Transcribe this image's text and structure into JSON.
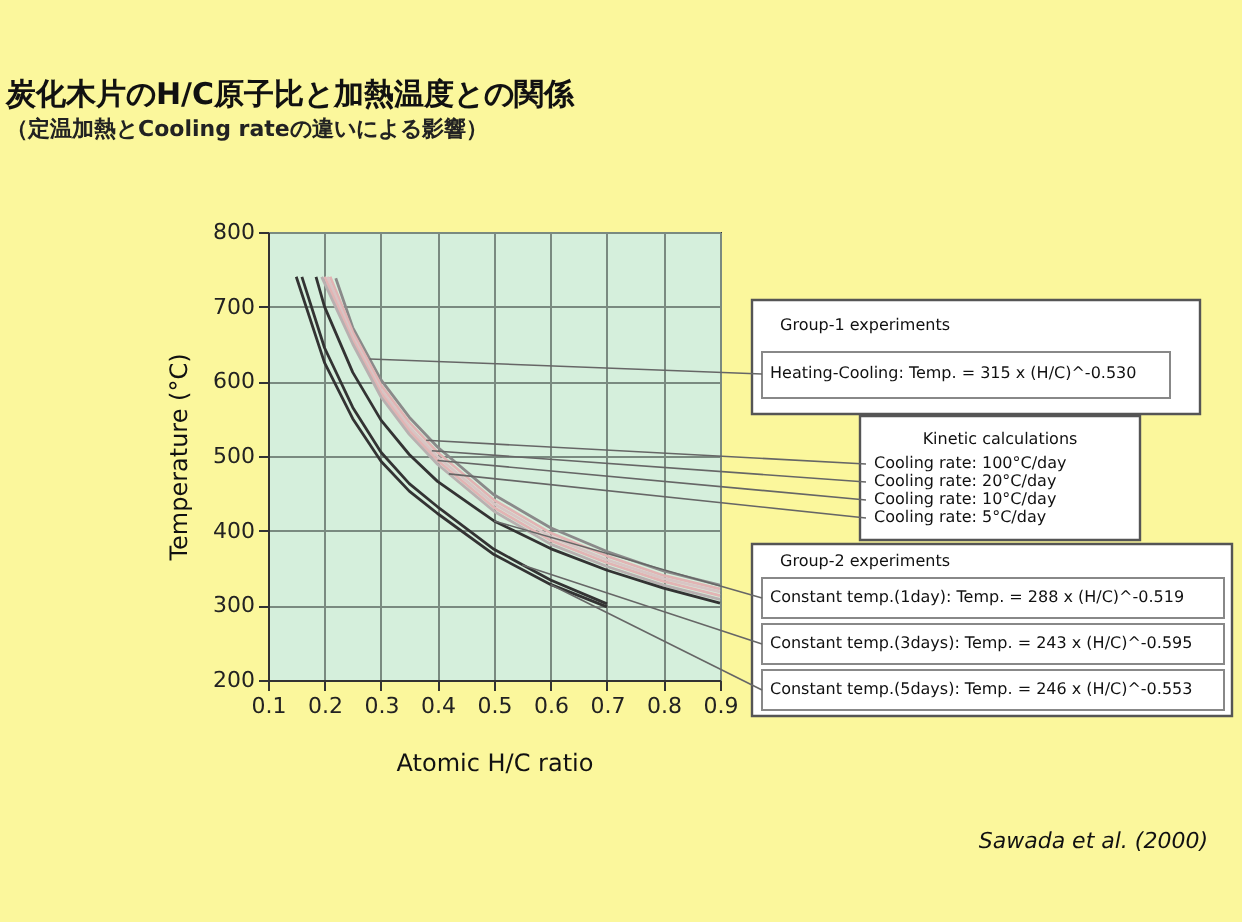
{
  "chart_data": {
    "type": "line",
    "title": "炭化木片のH/C原子比と加熱温度との関係",
    "subtitle": "（定温加熱とCooling rateの違いによる影響）",
    "xlabel": "Atomic H/C ratio",
    "ylabel": "Temperature (°C)",
    "xlim": [
      0.1,
      0.9
    ],
    "ylim": [
      200,
      800
    ],
    "xticks": [
      0.1,
      0.2,
      0.3,
      0.4,
      0.5,
      0.6,
      0.7,
      0.8,
      0.9
    ],
    "yticks": [
      200,
      300,
      400,
      500,
      600,
      700,
      800
    ],
    "grid": true,
    "marker": "none",
    "line_style": "solid",
    "series": [
      {
        "color": "#8a8a8a",
        "x": [
          0.22,
          0.25,
          0.3,
          0.35,
          0.4,
          0.5,
          0.6,
          0.7,
          0.8,
          0.9
        ],
        "values": [
          738,
          672,
          602,
          552,
          512,
          448,
          404,
          372,
          346,
          327
        ]
      },
      {
        "color": "#e2b4b4",
        "x": [
          0.21,
          0.25,
          0.3,
          0.35,
          0.4,
          0.5,
          0.6,
          0.7,
          0.8,
          0.9
        ],
        "values": [
          740,
          666,
          595,
          545,
          505,
          441,
          397,
          366,
          340,
          322
        ]
      },
      {
        "color": "#d8c4c4",
        "x": [
          0.205,
          0.25,
          0.3,
          0.35,
          0.4,
          0.5,
          0.6,
          0.7,
          0.8,
          0.9
        ],
        "values": [
          740,
          660,
          589,
          539,
          499,
          436,
          392,
          361,
          336,
          318
        ]
      },
      {
        "color": "#e2b4b4",
        "x": [
          0.2,
          0.25,
          0.3,
          0.35,
          0.4,
          0.5,
          0.6,
          0.7,
          0.8,
          0.9
        ],
        "values": [
          740,
          655,
          584,
          534,
          494,
          431,
          387,
          357,
          332,
          313
        ]
      },
      {
        "color": "#b8b0b0",
        "x": [
          0.195,
          0.25,
          0.3,
          0.35,
          0.4,
          0.5,
          0.6,
          0.7,
          0.8,
          0.9
        ],
        "values": [
          740,
          650,
          579,
          529,
          489,
          426,
          382,
          352,
          327,
          308
        ]
      },
      {
        "color": "#333333",
        "x": [
          0.185,
          0.2,
          0.25,
          0.3,
          0.35,
          0.4,
          0.5,
          0.6,
          0.7,
          0.8,
          0.9
        ],
        "values": [
          740,
          700,
          612,
          548,
          502,
          466,
          413,
          376,
          347,
          323,
          303
        ]
      },
      {
        "color": "#333333",
        "x": [
          0.16,
          0.2,
          0.25,
          0.3,
          0.35,
          0.4,
          0.5,
          0.6,
          0.7
        ],
        "values": [
          740,
          645,
          565,
          505,
          463,
          432,
          375,
          334,
          302
        ]
      },
      {
        "color": "#333333",
        "x": [
          0.15,
          0.2,
          0.25,
          0.3,
          0.35,
          0.4,
          0.5,
          0.6,
          0.7
        ],
        "values": [
          740,
          625,
          550,
          493,
          453,
          423,
          368,
          328,
          298
        ]
      }
    ],
    "annotations": [
      "Group-1 experiments",
      {
        "text": "Heating-Cooling: Temp. = 315 x (H/C)^-0.530",
        "x": 0.28,
        "y": 630
      },
      "Kinetic calculations",
      {
        "text": "Cooling rate:  100°C/day",
        "x": 0.38,
        "y": 521
      },
      {
        "text": "Cooling rate:  20°C/day",
        "x": 0.39,
        "y": 507
      },
      {
        "text": "Cooling rate:  10°C/day",
        "x": 0.4,
        "y": 494
      },
      {
        "text": "Cooling rate:  5°C/day",
        "x": 0.42,
        "y": 476
      },
      "Group-2 experiments",
      {
        "text": "Constant temp.(1day):  Temp. = 288 x (H/C)^-0.519",
        "x": 0.5,
        "y": 413
      },
      {
        "text": "Constant temp.(3days):  Temp. = 243 x (H/C)^-0.595",
        "x": 0.55,
        "y": 354
      },
      {
        "text": "Constant temp.(5days):  Temp. = 246 x (H/C)^-0.553",
        "x": 0.6,
        "y": 328
      },
      "Sawada et al. (2000)"
    ]
  }
}
